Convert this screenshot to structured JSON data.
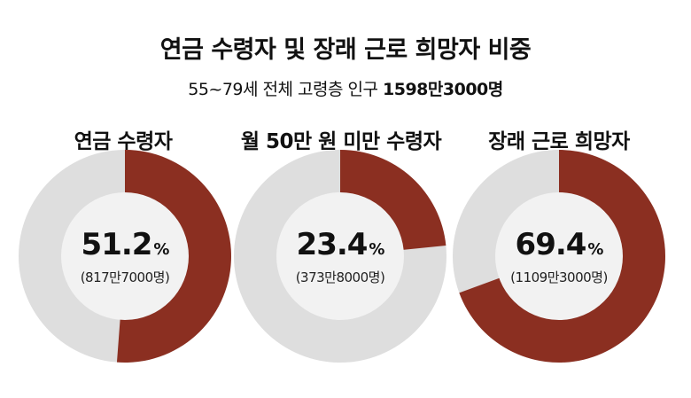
{
  "title": "연금 수령자 및 장래 근로 희망자 비중",
  "subtitle_prefix": "55~79세 전체 고령층 인구 ",
  "subtitle_strong": "1598만3000명",
  "colors": {
    "filled": "#8b2f21",
    "track": "#dedede",
    "center": "#f2f2f2"
  },
  "chart_data": [
    {
      "type": "pie",
      "title": "연금 수령자",
      "value": 51.2,
      "value_label": "51.2",
      "unit": "%",
      "count_label": "(817만7000명)"
    },
    {
      "type": "pie",
      "title": "월 50만 원 미만 수령자",
      "value": 23.4,
      "value_label": "23.4",
      "unit": "%",
      "count_label": "(373만8000명)"
    },
    {
      "type": "pie",
      "title": "장래 근로 희망자",
      "value": 69.4,
      "value_label": "69.4",
      "unit": "%",
      "count_label": "(1109만3000명)"
    }
  ]
}
